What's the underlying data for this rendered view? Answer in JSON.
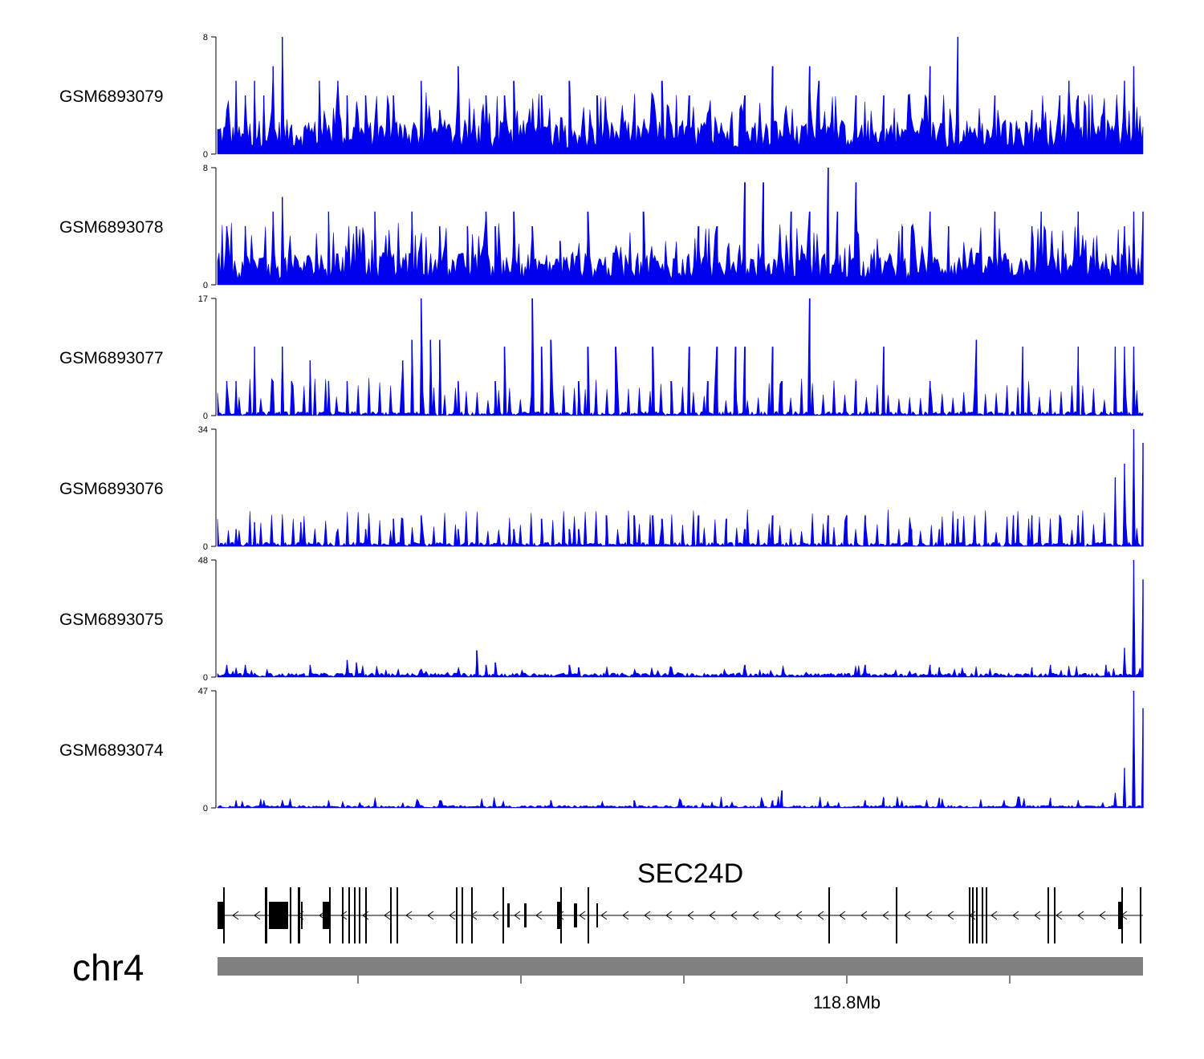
{
  "chart_data": {
    "type": "area",
    "title": "",
    "xlabel": "",
    "ylabel": "",
    "chromosome": "chr4",
    "gene": "SEC24D",
    "strand": "minus",
    "x_tick_labels": [
      "",
      "",
      "",
      "118.8Mb",
      ""
    ],
    "fill_color": "#0000ee",
    "gene_color": "#000000",
    "ideogram_color": "#808080",
    "series": [
      {
        "name": "GSM6893079",
        "ylim": [
          0,
          8
        ],
        "style": "dense",
        "base_level": 1.4,
        "peaks": [
          [
            0.01,
            3
          ],
          [
            0.02,
            5
          ],
          [
            0.03,
            4
          ],
          [
            0.04,
            5
          ],
          [
            0.05,
            4
          ],
          [
            0.06,
            6
          ],
          [
            0.07,
            8
          ],
          [
            0.08,
            2
          ],
          [
            0.11,
            5
          ],
          [
            0.13,
            5
          ],
          [
            0.14,
            4
          ],
          [
            0.16,
            4
          ],
          [
            0.19,
            4
          ],
          [
            0.22,
            5
          ],
          [
            0.24,
            3
          ],
          [
            0.26,
            6
          ],
          [
            0.29,
            4
          ],
          [
            0.31,
            4
          ],
          [
            0.32,
            5
          ],
          [
            0.35,
            4
          ],
          [
            0.38,
            5
          ],
          [
            0.38,
            3
          ],
          [
            0.41,
            4
          ],
          [
            0.47,
            4
          ],
          [
            0.48,
            5
          ],
          [
            0.51,
            4
          ],
          [
            0.57,
            4
          ],
          [
            0.6,
            6
          ],
          [
            0.64,
            6
          ],
          [
            0.65,
            5
          ],
          [
            0.69,
            4
          ],
          [
            0.72,
            4
          ],
          [
            0.77,
            6
          ],
          [
            0.8,
            8
          ],
          [
            0.84,
            4
          ],
          [
            0.88,
            3
          ],
          [
            0.91,
            4
          ],
          [
            0.92,
            5
          ],
          [
            0.93,
            4
          ],
          [
            0.98,
            5
          ],
          [
            0.99,
            6
          ]
        ]
      },
      {
        "name": "GSM6893078",
        "ylim": [
          0,
          8
        ],
        "style": "dense",
        "base_level": 1.3,
        "peaks": [
          [
            0.01,
            4
          ],
          [
            0.03,
            4
          ],
          [
            0.06,
            5
          ],
          [
            0.07,
            6
          ],
          [
            0.12,
            5
          ],
          [
            0.15,
            4
          ],
          [
            0.17,
            5
          ],
          [
            0.21,
            5
          ],
          [
            0.24,
            4
          ],
          [
            0.27,
            4
          ],
          [
            0.29,
            5
          ],
          [
            0.3,
            4
          ],
          [
            0.32,
            5
          ],
          [
            0.34,
            4
          ],
          [
            0.37,
            3
          ],
          [
            0.4,
            5
          ],
          [
            0.46,
            5
          ],
          [
            0.52,
            4
          ],
          [
            0.54,
            4
          ],
          [
            0.57,
            7
          ],
          [
            0.59,
            7
          ],
          [
            0.62,
            5
          ],
          [
            0.64,
            5
          ],
          [
            0.66,
            8
          ],
          [
            0.67,
            5
          ],
          [
            0.69,
            7
          ],
          [
            0.74,
            4
          ],
          [
            0.77,
            5
          ],
          [
            0.79,
            4
          ],
          [
            0.84,
            5
          ],
          [
            0.88,
            4
          ],
          [
            0.89,
            5
          ],
          [
            0.93,
            5
          ],
          [
            0.98,
            4
          ],
          [
            0.99,
            5
          ],
          [
            1.0,
            5
          ]
        ]
      },
      {
        "name": "GSM6893077",
        "ylim": [
          0,
          17
        ],
        "style": "spiky",
        "base_level": 0.6,
        "peaks": [
          [
            0.01,
            5
          ],
          [
            0.02,
            5
          ],
          [
            0.04,
            10
          ],
          [
            0.06,
            5
          ],
          [
            0.07,
            10
          ],
          [
            0.08,
            5
          ],
          [
            0.1,
            8
          ],
          [
            0.12,
            5
          ],
          [
            0.14,
            5
          ],
          [
            0.2,
            5
          ],
          [
            0.2,
            8
          ],
          [
            0.21,
            11
          ],
          [
            0.22,
            17
          ],
          [
            0.23,
            11
          ],
          [
            0.24,
            11
          ],
          [
            0.26,
            5
          ],
          [
            0.3,
            5
          ],
          [
            0.31,
            10
          ],
          [
            0.34,
            5
          ],
          [
            0.35,
            10
          ],
          [
            0.34,
            17
          ],
          [
            0.36,
            11
          ],
          [
            0.39,
            5
          ],
          [
            0.4,
            10
          ],
          [
            0.43,
            10
          ],
          [
            0.47,
            10
          ],
          [
            0.49,
            5
          ],
          [
            0.51,
            10
          ],
          [
            0.53,
            5
          ],
          [
            0.54,
            10
          ],
          [
            0.56,
            10
          ],
          [
            0.57,
            10
          ],
          [
            0.6,
            10
          ],
          [
            0.61,
            5
          ],
          [
            0.64,
            17
          ],
          [
            0.69,
            5
          ],
          [
            0.72,
            10
          ],
          [
            0.77,
            5
          ],
          [
            0.82,
            11
          ],
          [
            0.87,
            10
          ],
          [
            0.93,
            10
          ],
          [
            0.97,
            10
          ],
          [
            0.98,
            10
          ],
          [
            0.99,
            10
          ]
        ]
      },
      {
        "name": "GSM6893076",
        "ylim": [
          0,
          34
        ],
        "style": "spiky",
        "base_level": 1.2,
        "peaks": [
          [
            0.02,
            5
          ],
          [
            0.04,
            7
          ],
          [
            0.09,
            7
          ],
          [
            0.13,
            5
          ],
          [
            0.16,
            5
          ],
          [
            0.19,
            8
          ],
          [
            0.2,
            8
          ],
          [
            0.22,
            9
          ],
          [
            0.26,
            5
          ],
          [
            0.32,
            5
          ],
          [
            0.35,
            8
          ],
          [
            0.38,
            5
          ],
          [
            0.39,
            5
          ],
          [
            0.42,
            9
          ],
          [
            0.45,
            9
          ],
          [
            0.47,
            9
          ],
          [
            0.48,
            8
          ],
          [
            0.52,
            9
          ],
          [
            0.55,
            8
          ],
          [
            0.57,
            5
          ],
          [
            0.6,
            9
          ],
          [
            0.66,
            9
          ],
          [
            0.68,
            9
          ],
          [
            0.7,
            9
          ],
          [
            0.75,
            5
          ],
          [
            0.78,
            5
          ],
          [
            0.8,
            8
          ],
          [
            0.86,
            9
          ],
          [
            0.88,
            9
          ],
          [
            0.91,
            9
          ],
          [
            0.93,
            9
          ],
          [
            0.97,
            20
          ],
          [
            0.98,
            24
          ],
          [
            0.99,
            28
          ],
          [
            0.99,
            34
          ],
          [
            1.0,
            30
          ]
        ]
      },
      {
        "name": "GSM6893075",
        "ylim": [
          0,
          48
        ],
        "style": "low",
        "base_level": 1.0,
        "peaks": [
          [
            0.01,
            5
          ],
          [
            0.03,
            5
          ],
          [
            0.1,
            5
          ],
          [
            0.14,
            7
          ],
          [
            0.15,
            6
          ],
          [
            0.28,
            11
          ],
          [
            0.29,
            5
          ],
          [
            0.3,
            6
          ],
          [
            0.38,
            5
          ],
          [
            0.39,
            4
          ],
          [
            0.49,
            4
          ],
          [
            0.57,
            5
          ],
          [
            0.7,
            5
          ],
          [
            0.77,
            5
          ],
          [
            0.78,
            4
          ],
          [
            0.88,
            4
          ],
          [
            0.9,
            5
          ],
          [
            0.96,
            5
          ],
          [
            0.98,
            12
          ],
          [
            0.99,
            28
          ],
          [
            0.99,
            48
          ],
          [
            1.0,
            40
          ]
        ]
      },
      {
        "name": "GSM6893074",
        "ylim": [
          0,
          47
        ],
        "style": "low",
        "base_level": 0.6,
        "peaks": [
          [
            0.02,
            3
          ],
          [
            0.05,
            3
          ],
          [
            0.07,
            3
          ],
          [
            0.12,
            3
          ],
          [
            0.2,
            2
          ],
          [
            0.24,
            3
          ],
          [
            0.36,
            3
          ],
          [
            0.45,
            3
          ],
          [
            0.5,
            3
          ],
          [
            0.6,
            3
          ],
          [
            0.61,
            7
          ],
          [
            0.7,
            3
          ],
          [
            0.72,
            4
          ],
          [
            0.78,
            4
          ],
          [
            0.85,
            3
          ],
          [
            0.9,
            4
          ],
          [
            0.93,
            3
          ],
          [
            0.97,
            6
          ],
          [
            0.98,
            16
          ],
          [
            0.99,
            30
          ],
          [
            0.99,
            47
          ],
          [
            1.0,
            40
          ]
        ]
      }
    ]
  }
}
